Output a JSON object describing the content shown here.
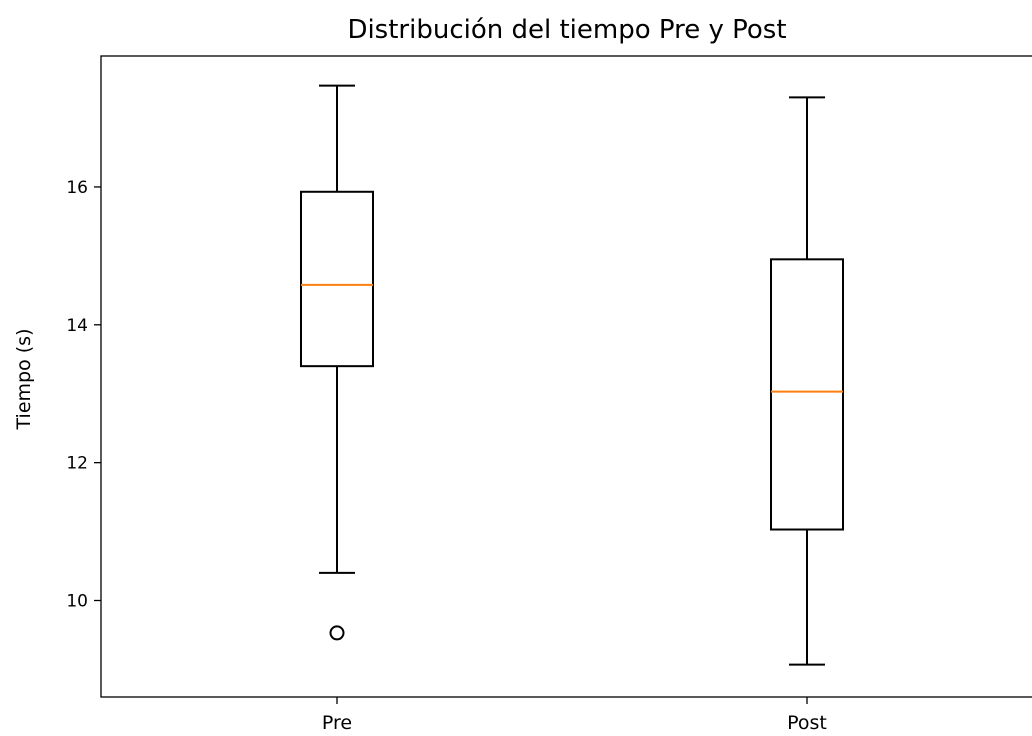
{
  "chart_data": {
    "type": "boxplot",
    "title": "Distribución del tiempo Pre y Post",
    "xlabel": "",
    "ylabel": "Tiempo (s)",
    "ylim": [
      8.6,
      17.9
    ],
    "yticks": [
      "10",
      "12",
      "14",
      "16"
    ],
    "yticks_values": [
      10,
      12,
      14,
      16
    ],
    "grid": false,
    "categories": [
      "Pre",
      "Post"
    ],
    "boxes": [
      {
        "category": "Pre",
        "whisker_low": 10.4,
        "q1": 13.4,
        "median": 14.58,
        "q3": 15.93,
        "whisker_high": 17.47,
        "outliers": [
          9.53
        ]
      },
      {
        "category": "Post",
        "whisker_low": 9.07,
        "q1": 11.03,
        "median": 13.03,
        "q3": 14.95,
        "whisker_high": 17.3,
        "outliers": []
      }
    ],
    "colors": {
      "box": "#000000",
      "median": "#ff7f0e"
    }
  }
}
